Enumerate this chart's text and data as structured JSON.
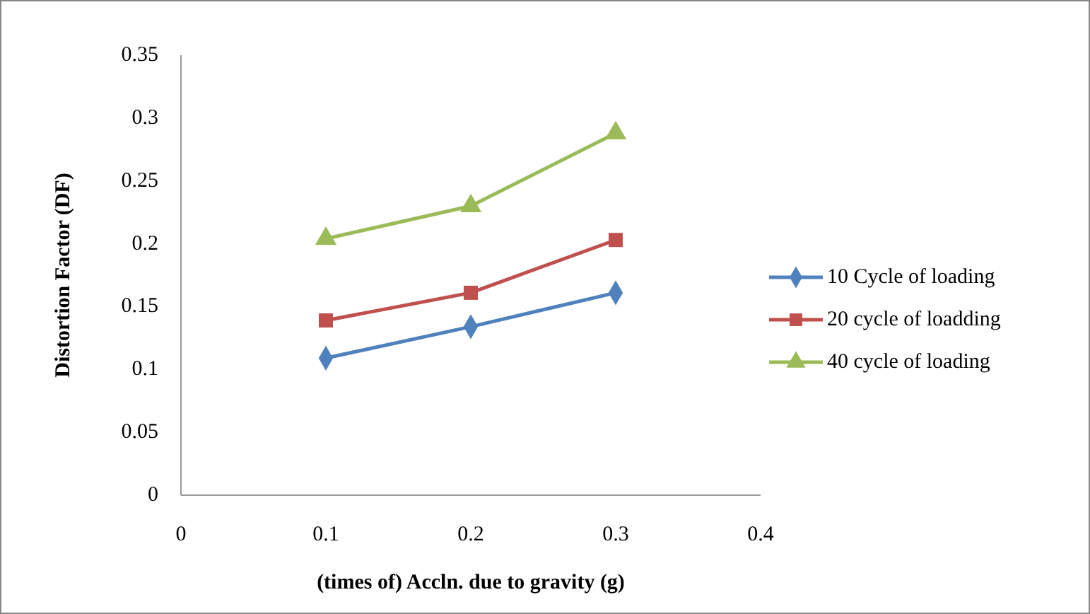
{
  "chart_data": {
    "type": "line",
    "xlabel": "(times of) Accln. due  to gravity (g)",
    "ylabel": "Distortion Factor (DF)",
    "x": [
      0.1,
      0.2,
      0.3
    ],
    "xlim": [
      0,
      0.4
    ],
    "xticks": [
      0,
      0.1,
      0.2,
      0.3,
      0.4
    ],
    "ylim": [
      0,
      0.35
    ],
    "yticks": [
      0,
      0.05,
      0.1,
      0.15,
      0.2,
      0.25,
      0.3,
      0.35
    ],
    "grid": false,
    "legend": "right",
    "series": [
      {
        "name": "10 Cycle of loading",
        "color": "#4f81bd",
        "marker": "diamond",
        "values": [
          0.109,
          0.134,
          0.161
        ]
      },
      {
        "name": "20 cycle of loadding",
        "color": "#c0504d",
        "marker": "square",
        "values": [
          0.139,
          0.161,
          0.203
        ]
      },
      {
        "name": "40 cycle of loading",
        "color": "#9bbb59",
        "marker": "triangle",
        "values": [
          0.204,
          0.23,
          0.288
        ]
      }
    ]
  }
}
